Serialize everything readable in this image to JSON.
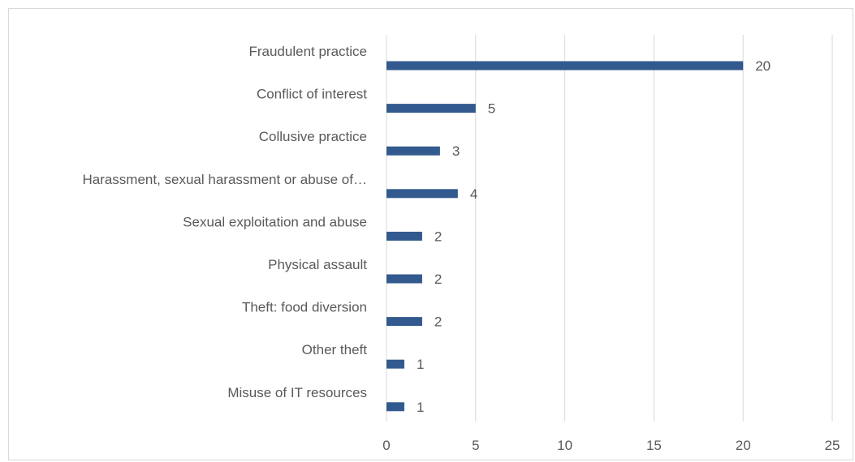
{
  "chart_data": {
    "type": "bar",
    "orientation": "horizontal",
    "categories": [
      "Fraudulent practice",
      "Conflict of interest",
      "Collusive practice",
      "Harassment, sexual harassment or abuse of…",
      "Sexual exploitation and abuse",
      "Physical assault",
      "Theft: food diversion",
      "Other theft",
      "Misuse of IT resources"
    ],
    "values": [
      20,
      5,
      3,
      4,
      2,
      2,
      2,
      1,
      1
    ],
    "data_labels": [
      "20",
      "5",
      "3",
      "4",
      "2",
      "2",
      "2",
      "1",
      "1"
    ],
    "title": "",
    "xlabel": "",
    "ylabel": "",
    "xlim": [
      0,
      25
    ],
    "xticks": [
      "0",
      "5",
      "10",
      "15",
      "20",
      "25"
    ],
    "grid": "vertical",
    "legend": "none",
    "bar_color": "#335a8f",
    "grid_color": "#d9d9d9",
    "text_color": "#595959"
  }
}
